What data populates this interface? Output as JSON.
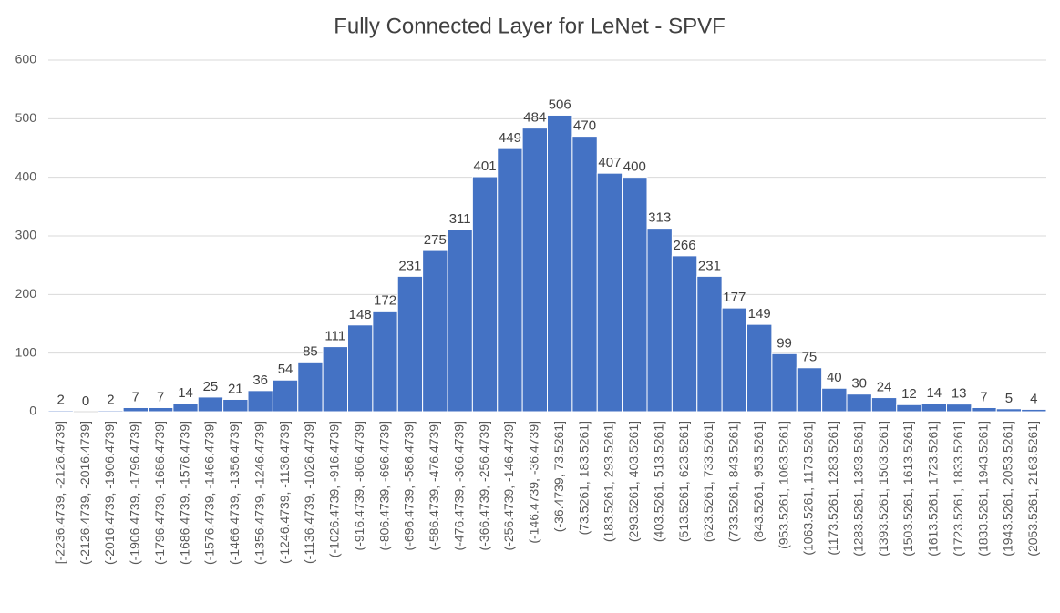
{
  "chart_data": {
    "type": "bar",
    "title": "Fully Connected Layer for LeNet - SPVF",
    "categories": [
      "[-2236.4739, -2126.4739]",
      "(-2126.4739, -2016.4739]",
      "(-2016.4739, -1906.4739]",
      "(-1906.4739, -1796.4739]",
      "(-1796.4739, -1686.4739]",
      "(-1686.4739, -1576.4739]",
      "(-1576.4739, -1466.4739]",
      "(-1466.4739, -1356.4739]",
      "(-1356.4739, -1246.4739]",
      "(-1246.4739, -1136.4739]",
      "(-1136.4739, -1026.4739]",
      "(-1026.4739, -916.4739]",
      "(-916.4739, -806.4739]",
      "(-806.4739, -696.4739]",
      "(-696.4739, -586.4739]",
      "(-586.4739, -476.4739]",
      "(-476.4739, -366.4739]",
      "(-366.4739, -256.4739]",
      "(-256.4739, -146.4739]",
      "(-146.4739, -36.4739]",
      "(-36.4739, 73.5261]",
      "(73.5261, 183.5261]",
      "(183.5261, 293.5261]",
      "(293.5261, 403.5261]",
      "(403.5261, 513.5261]",
      "(513.5261, 623.5261]",
      "(623.5261, 733.5261]",
      "(733.5261, 843.5261]",
      "(843.5261, 953.5261]",
      "(953.5261, 1063.5261]",
      "(1063.5261, 1173.5261]",
      "(1173.5261, 1283.5261]",
      "(1283.5261, 1393.5261]",
      "(1393.5261, 1503.5261]",
      "(1503.5261, 1613.5261]",
      "(1613.5261, 1723.5261]",
      "(1723.5261, 1833.5261]",
      "(1833.5261, 1943.5261]",
      "(1943.5261, 2053.5261]",
      "(2053.5261, 2163.5261]"
    ],
    "values": [
      2,
      0,
      2,
      7,
      7,
      14,
      25,
      21,
      36,
      54,
      85,
      111,
      148,
      172,
      231,
      275,
      311,
      401,
      449,
      484,
      506,
      470,
      407,
      400,
      313,
      266,
      231,
      177,
      149,
      99,
      75,
      40,
      30,
      24,
      12,
      14,
      13,
      7,
      5,
      4
    ],
    "color": "#4472c4",
    "ylim": [
      0,
      600
    ],
    "yticks": [
      0,
      100,
      200,
      300,
      400,
      500,
      600
    ],
    "grid": true
  }
}
